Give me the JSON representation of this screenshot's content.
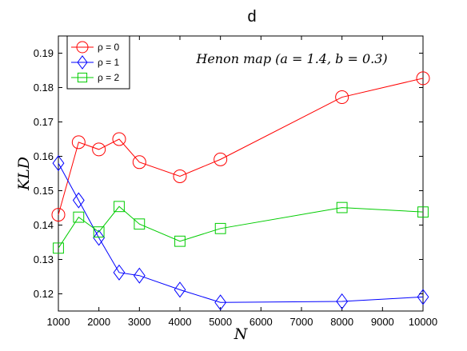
{
  "chart_data": {
    "type": "line",
    "title": "d",
    "xlabel": "N",
    "ylabel": "KLD",
    "xlim": [
      1000,
      10000
    ],
    "ylim": [
      0.115,
      0.195
    ],
    "xticks": [
      1000,
      2000,
      3000,
      4000,
      5000,
      6000,
      7000,
      8000,
      9000,
      10000
    ],
    "yticks": [
      0.12,
      0.13,
      0.14,
      0.15,
      0.16,
      0.17,
      0.18,
      0.19
    ],
    "grid": false,
    "legend_position": "top-left",
    "annotation": "Henon map (a = 1.4, b = 0.3)",
    "x": [
      1000,
      1500,
      2000,
      2500,
      3000,
      4000,
      5000,
      8000,
      10000
    ],
    "series": [
      {
        "name": "ρ = 0",
        "color": "#ff0000",
        "marker": "circle",
        "values": [
          0.143,
          0.1641,
          0.162,
          0.165,
          0.1583,
          0.1542,
          0.1591,
          0.1772,
          0.1827
        ]
      },
      {
        "name": "ρ = 1",
        "color": "#0000ff",
        "marker": "diamond",
        "values": [
          0.158,
          0.1472,
          0.1363,
          0.1262,
          0.1253,
          0.1212,
          0.1175,
          0.1178,
          0.1191
        ]
      },
      {
        "name": "ρ = 2",
        "color": "#00cc00",
        "marker": "square",
        "values": [
          0.1333,
          0.1423,
          0.138,
          0.1454,
          0.1403,
          0.1353,
          0.139,
          0.1451,
          0.1438
        ]
      }
    ]
  }
}
